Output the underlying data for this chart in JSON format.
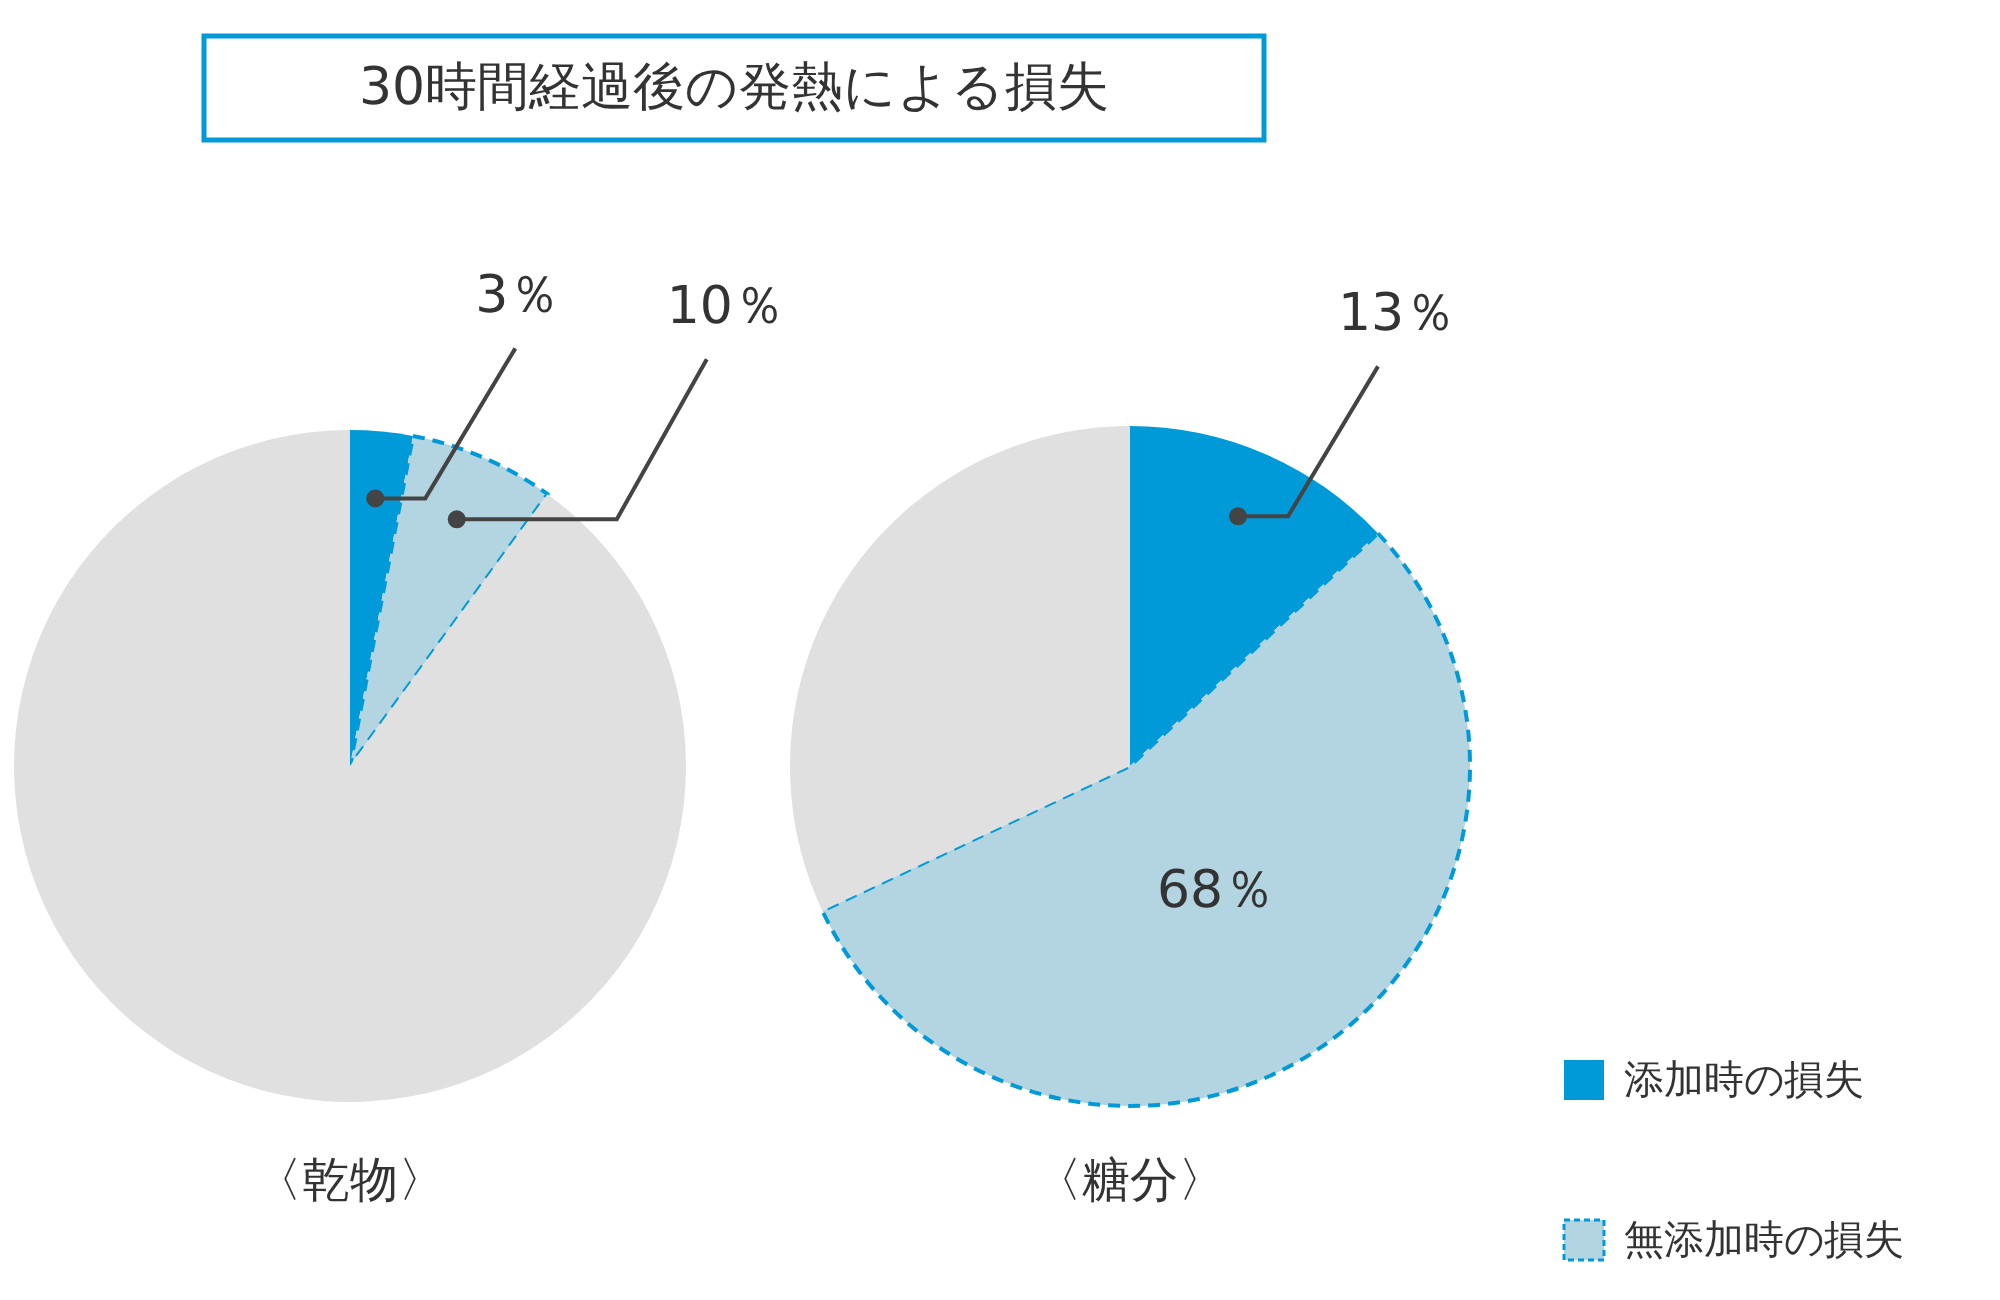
{
  "chart_data": [
    {
      "type": "pie",
      "title": "30時間経過後の発熱による損失",
      "xlabel": "〈乾物〉",
      "categories": [
        null,
        null,
        null
      ],
      "values": [
        3,
        7,
        90
      ],
      "annotations": [
        "3％",
        "10％"
      ],
      "colors": [
        "#009ad9",
        "#b3d4e1",
        "#e0e0e0"
      ],
      "legend": false
    },
    {
      "type": "pie",
      "xlabel": "〈糖分〉",
      "categories": [
        "添加時の損失",
        "無添加時の損失",
        null
      ],
      "values": [
        13,
        55,
        32
      ],
      "annotations": [
        "13％",
        "68％"
      ],
      "colors": [
        "#009ad9",
        "#b3d4e1",
        "#e0e0e0"
      ],
      "legend": "bottom right"
    }
  ]
}
